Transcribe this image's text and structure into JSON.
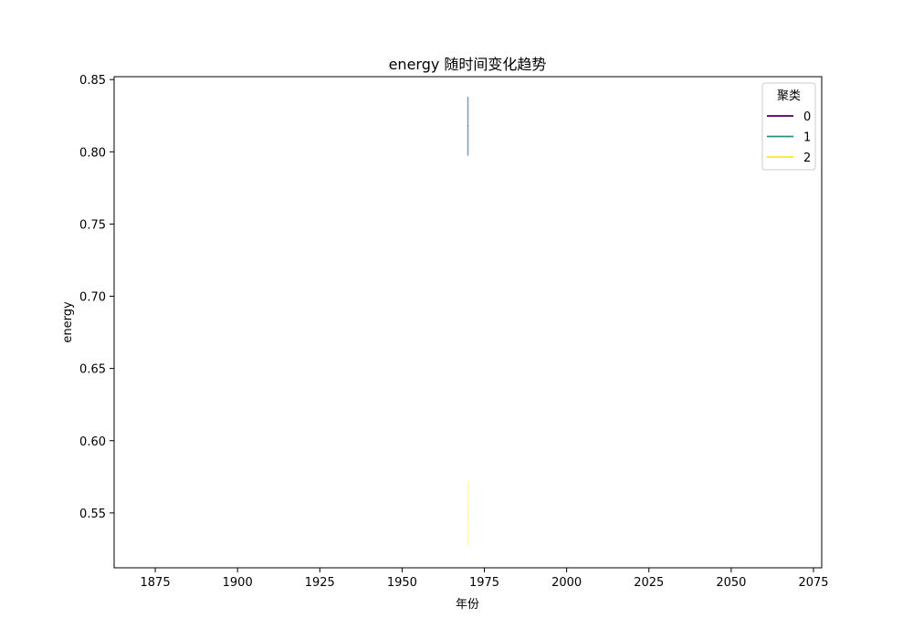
{
  "chart_data": {
    "type": "line",
    "title": "energy 随时间变化趋势",
    "xlabel": "年份",
    "ylabel": "energy",
    "xlim": [
      1862.5,
      2077.5
    ],
    "ylim": [
      0.512,
      0.852
    ],
    "xticks": [
      "1875",
      "1900",
      "1925",
      "1950",
      "1975",
      "2000",
      "2025",
      "2050",
      "2075"
    ],
    "xtick_values": [
      1875,
      1900,
      1925,
      1950,
      1975,
      2000,
      2025,
      2050,
      2075
    ],
    "yticks": [
      "0.55",
      "0.60",
      "0.65",
      "0.70",
      "0.75",
      "0.80",
      "0.85"
    ],
    "ytick_values": [
      0.55,
      0.6,
      0.65,
      0.7,
      0.75,
      0.8,
      0.85
    ],
    "grid": false,
    "legend": {
      "title": "聚类",
      "placement": "top-right",
      "entries": [
        "0",
        "1",
        "2"
      ]
    },
    "series": [
      {
        "name": "0",
        "color": "#440154",
        "x": [
          1970
        ],
        "y": [
          0.818
        ],
        "band": [
          0.797,
          0.838
        ]
      },
      {
        "name": "1",
        "color": "#21918c",
        "x": [
          1970
        ],
        "y": [
          0.818
        ],
        "band": [
          0.798,
          0.838
        ]
      },
      {
        "name": "2",
        "color": "#fde725",
        "x": [
          1970
        ],
        "y": [
          0.55
        ],
        "band": [
          0.527,
          0.572
        ]
      }
    ]
  }
}
